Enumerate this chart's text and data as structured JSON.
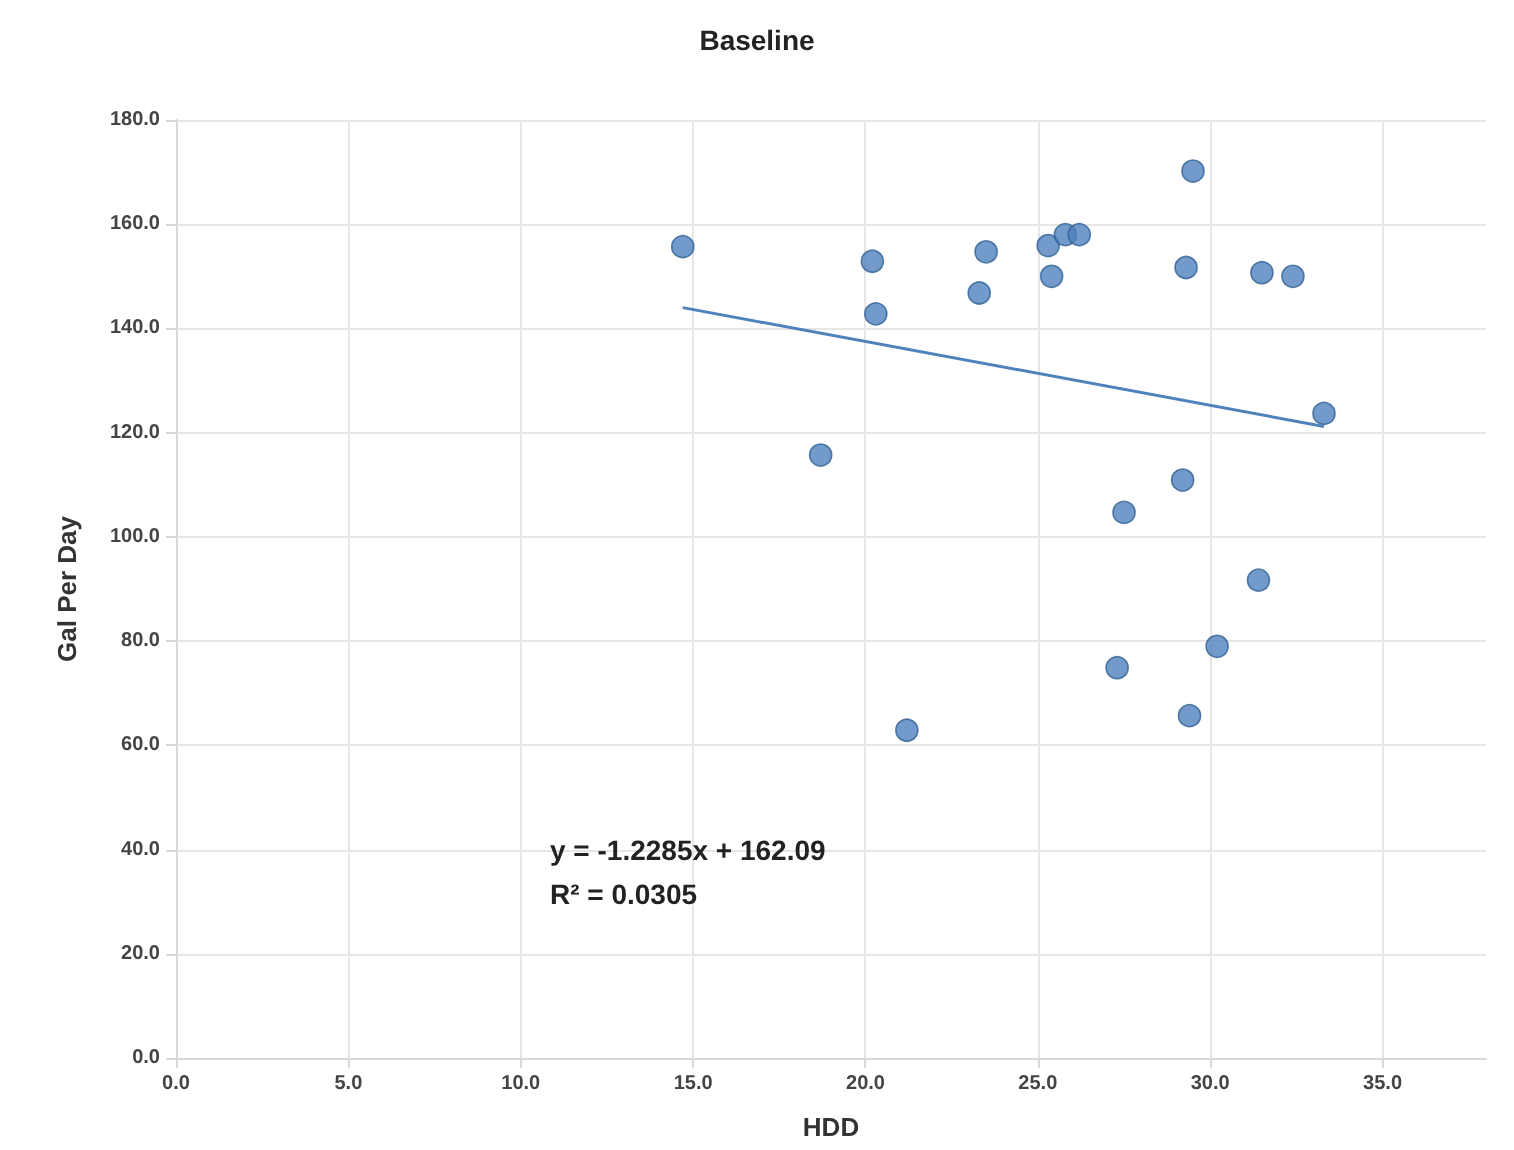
{
  "chart_data": {
    "type": "scatter",
    "title": "Baseline",
    "xlabel": "HDD",
    "ylabel": "Gal Per Day",
    "xlim": [
      0,
      38
    ],
    "ylim": [
      0,
      180
    ],
    "xticks": [
      {
        "value": 0,
        "label": "0.0"
      },
      {
        "value": 5,
        "label": "5.0"
      },
      {
        "value": 10,
        "label": "10.0"
      },
      {
        "value": 15,
        "label": "15.0"
      },
      {
        "value": 20,
        "label": "20.0"
      },
      {
        "value": 25,
        "label": "25.0"
      },
      {
        "value": 30,
        "label": "30.0"
      },
      {
        "value": 35,
        "label": "35.0"
      }
    ],
    "yticks": [
      {
        "value": 0,
        "label": "0.0"
      },
      {
        "value": 20,
        "label": "20.0"
      },
      {
        "value": 40,
        "label": "40.0"
      },
      {
        "value": 60,
        "label": "60.0"
      },
      {
        "value": 80,
        "label": "80.0"
      },
      {
        "value": 100,
        "label": "100.0"
      },
      {
        "value": 120,
        "label": "120.0"
      },
      {
        "value": 140,
        "label": "140.0"
      },
      {
        "value": 160,
        "label": "160.0"
      },
      {
        "value": 180,
        "label": "180.0"
      }
    ],
    "grid": true,
    "marker": "circle",
    "series": [
      {
        "color": "#4f81bd",
        "x": [
          14.7,
          18.7,
          20.2,
          20.3,
          21.2,
          23.3,
          23.5,
          25.3,
          25.4,
          25.8,
          26.2,
          27.3,
          27.5,
          29.2,
          29.3,
          29.4,
          29.5,
          30.2,
          31.4,
          31.5,
          32.4,
          33.3
        ],
        "values": [
          155.7,
          115.7,
          152.9,
          142.8,
          62.9,
          146.8,
          154.7,
          155.9,
          150.0,
          158.0,
          158.0,
          74.9,
          104.7,
          110.9,
          151.7,
          65.7,
          170.2,
          79.0,
          91.7,
          150.7,
          150.0,
          123.7
        ]
      },
      {
        "type": "line",
        "color": "#4f81bd",
        "marker": "none",
        "x": [
          14.7,
          33.3
        ],
        "values": [
          144.0,
          121.2
        ]
      }
    ],
    "annotations": [
      "y = -1.2285x + 162.09",
      "R² = 0.0305"
    ]
  }
}
